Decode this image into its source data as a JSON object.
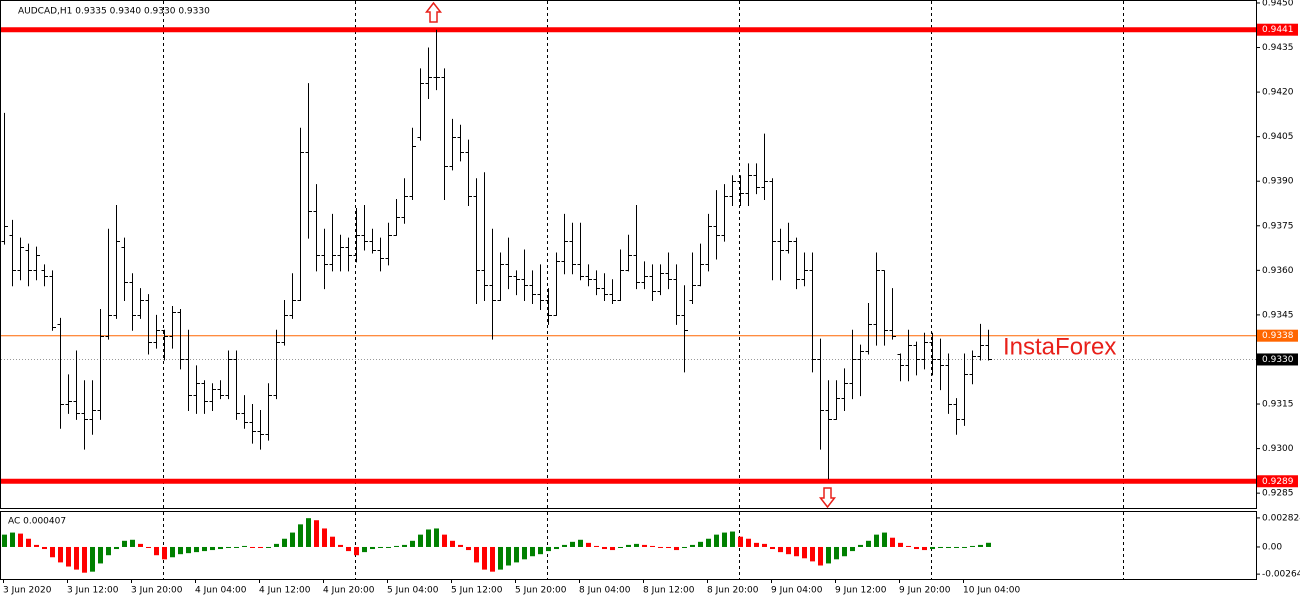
{
  "chart_data": [
    {
      "type": "ohlc",
      "title": "AUDCAD,H1  0.9335 0.9340 0.9330 0.9330",
      "watermark": "InstaForex",
      "color": "#000000",
      "ylim": [
        0.928,
        0.9451
      ],
      "yticks": [
        {
          "value": 0.945,
          "label": "0.9450"
        },
        {
          "value": 0.9435,
          "label": "0.9435"
        },
        {
          "value": 0.942,
          "label": "0.9420"
        },
        {
          "value": 0.9405,
          "label": "0.9405"
        },
        {
          "value": 0.939,
          "label": "0.9390"
        },
        {
          "value": 0.9375,
          "label": "0.9375"
        },
        {
          "value": 0.936,
          "label": "0.9360"
        },
        {
          "value": 0.9345,
          "label": "0.9345"
        },
        {
          "value": 0.9315,
          "label": "0.9315"
        },
        {
          "value": 0.93,
          "label": "0.9300"
        },
        {
          "value": 0.9285,
          "label": "0.9285"
        }
      ],
      "levels": [
        {
          "value": 0.9441,
          "label": "0.9441",
          "color": "#ff0000"
        },
        {
          "value": 0.9289,
          "label": "0.9289",
          "color": "#ff0000"
        },
        {
          "value": 0.9338,
          "label": "0.9338",
          "color": "#ff6600"
        }
      ],
      "bid": {
        "value": 0.933,
        "label": "0.9330",
        "color": "#000000"
      },
      "time_labels": [
        "3 Jun 2020",
        "3 Jun 12:00",
        "3 Jun 20:00",
        "4 Jun 04:00",
        "4 Jun 12:00",
        "4 Jun 20:00",
        "5 Jun 04:00",
        "5 Jun 12:00",
        "5 Jun 20:00",
        "8 Jun 04:00",
        "8 Jun 12:00",
        "8 Jun 20:00",
        "9 Jun 04:00",
        "9 Jun 12:00",
        "9 Jun 20:00",
        "10 Jun 04:00"
      ],
      "open": [
        0.937,
        0.9372,
        0.936,
        0.9367,
        0.936,
        0.936,
        0.9358,
        0.9342,
        0.9315,
        0.9316,
        0.9312,
        0.931,
        0.9313,
        0.9338,
        0.9345,
        0.9368,
        0.9356,
        0.9345,
        0.935,
        0.9336,
        0.934,
        0.9338,
        0.9346,
        0.933,
        0.9318,
        0.9322,
        0.9316,
        0.932,
        0.9318,
        0.933,
        0.9312,
        0.9309,
        0.9306,
        0.9305,
        0.9318,
        0.9336,
        0.9345,
        0.935,
        0.94,
        0.938,
        0.9365,
        0.9362,
        0.9365,
        0.9368,
        0.9365,
        0.9372,
        0.937,
        0.9367,
        0.9364,
        0.9372,
        0.9378,
        0.9385,
        0.9405,
        0.9423,
        0.9425,
        0.9425,
        0.9395,
        0.9405,
        0.94,
        0.9385,
        0.936,
        0.9355,
        0.935,
        0.9362,
        0.9358,
        0.9357,
        0.9355,
        0.9352,
        0.935,
        0.9345,
        0.9363,
        0.937,
        0.9362,
        0.9358,
        0.9357,
        0.9354,
        0.9352,
        0.935,
        0.936,
        0.9365,
        0.9356,
        0.9358,
        0.9353,
        0.9359,
        0.9357,
        0.9345,
        0.935,
        0.9355,
        0.9362,
        0.9375,
        0.9372,
        0.9385,
        0.939,
        0.9386,
        0.9392,
        0.9388,
        0.939,
        0.937,
        0.9367,
        0.937,
        0.9357,
        0.936,
        0.933,
        0.9313,
        0.931,
        0.9317,
        0.9322,
        0.933,
        0.9333,
        0.9342,
        0.936,
        0.934,
        0.9332,
        0.9328,
        0.9335,
        0.933,
        0.9336,
        0.933,
        0.9328,
        0.9315,
        0.931,
        0.9325,
        0.9331,
        0.9335
      ],
      "high": [
        0.9413,
        0.9377,
        0.9371,
        0.9369,
        0.9368,
        0.9362,
        0.936,
        0.9344,
        0.9325,
        0.9333,
        0.9323,
        0.9323,
        0.9347,
        0.9374,
        0.9382,
        0.9371,
        0.9359,
        0.9354,
        0.9352,
        0.9345,
        0.934,
        0.9348,
        0.9347,
        0.934,
        0.9328,
        0.9323,
        0.9322,
        0.9323,
        0.9333,
        0.9333,
        0.9318,
        0.9315,
        0.9313,
        0.9322,
        0.934,
        0.935,
        0.9359,
        0.9408,
        0.9423,
        0.9389,
        0.9374,
        0.9379,
        0.9372,
        0.9371,
        0.9381,
        0.9382,
        0.9374,
        0.9371,
        0.9376,
        0.9384,
        0.9391,
        0.9408,
        0.9428,
        0.9435,
        0.9441,
        0.9428,
        0.9411,
        0.9409,
        0.9404,
        0.9391,
        0.9393,
        0.9374,
        0.9366,
        0.9371,
        0.936,
        0.9367,
        0.936,
        0.9362,
        0.9354,
        0.9366,
        0.9379,
        0.9376,
        0.9376,
        0.9362,
        0.936,
        0.9359,
        0.9357,
        0.9367,
        0.9372,
        0.9382,
        0.9363,
        0.9362,
        0.9362,
        0.9366,
        0.9362,
        0.9355,
        0.9366,
        0.9369,
        0.9379,
        0.9387,
        0.9389,
        0.9392,
        0.9392,
        0.9396,
        0.9396,
        0.9406,
        0.9391,
        0.9374,
        0.9376,
        0.9371,
        0.9366,
        0.9366,
        0.9337,
        0.9323,
        0.9323,
        0.9327,
        0.934,
        0.9335,
        0.9349,
        0.9366,
        0.936,
        0.9354,
        0.9332,
        0.934,
        0.9336,
        0.9339,
        0.9339,
        0.9337,
        0.9332,
        0.9317,
        0.9332,
        0.9333,
        0.9342,
        0.934
      ],
      "low": [
        0.9369,
        0.9355,
        0.9357,
        0.9355,
        0.9357,
        0.9355,
        0.934,
        0.9307,
        0.9312,
        0.931,
        0.93,
        0.9305,
        0.931,
        0.9337,
        0.9344,
        0.935,
        0.934,
        0.9344,
        0.9332,
        0.9334,
        0.933,
        0.9334,
        0.9327,
        0.9313,
        0.9312,
        0.9312,
        0.9313,
        0.9317,
        0.9317,
        0.931,
        0.9307,
        0.9302,
        0.93,
        0.9303,
        0.9317,
        0.9335,
        0.9344,
        0.935,
        0.9371,
        0.936,
        0.9354,
        0.936,
        0.936,
        0.936,
        0.9363,
        0.9367,
        0.9366,
        0.936,
        0.9362,
        0.9372,
        0.9376,
        0.9384,
        0.9404,
        0.9418,
        0.9421,
        0.9384,
        0.9394,
        0.9397,
        0.9382,
        0.9349,
        0.935,
        0.9337,
        0.935,
        0.9354,
        0.9352,
        0.935,
        0.9349,
        0.9347,
        0.9342,
        0.9345,
        0.9359,
        0.9359,
        0.9357,
        0.9355,
        0.9352,
        0.935,
        0.9349,
        0.935,
        0.936,
        0.9354,
        0.9354,
        0.935,
        0.9352,
        0.9354,
        0.9342,
        0.9326,
        0.9349,
        0.9355,
        0.936,
        0.9364,
        0.937,
        0.9382,
        0.9382,
        0.9382,
        0.9386,
        0.9384,
        0.9357,
        0.9357,
        0.9366,
        0.9354,
        0.9355,
        0.9326,
        0.93,
        0.929,
        0.931,
        0.9313,
        0.9317,
        0.9318,
        0.9332,
        0.9335,
        0.9335,
        0.9337,
        0.9323,
        0.9323,
        0.9325,
        0.9327,
        0.9325,
        0.932,
        0.9312,
        0.9305,
        0.9308,
        0.9322,
        0.933,
        0.933
      ],
      "close": [
        0.9375,
        0.936,
        0.9368,
        0.936,
        0.9365,
        0.9358,
        0.9341,
        0.9315,
        0.9316,
        0.9312,
        0.931,
        0.9313,
        0.9338,
        0.9345,
        0.937,
        0.9356,
        0.9345,
        0.935,
        0.9336,
        0.934,
        0.9338,
        0.9346,
        0.933,
        0.9318,
        0.9322,
        0.9316,
        0.932,
        0.9318,
        0.933,
        0.9312,
        0.9309,
        0.9306,
        0.9305,
        0.9318,
        0.9336,
        0.9345,
        0.935,
        0.94,
        0.938,
        0.9365,
        0.9362,
        0.9365,
        0.9368,
        0.9365,
        0.9372,
        0.937,
        0.9367,
        0.9364,
        0.9372,
        0.9378,
        0.9385,
        0.9402,
        0.9423,
        0.9425,
        0.9425,
        0.9395,
        0.9405,
        0.94,
        0.9385,
        0.936,
        0.9355,
        0.935,
        0.9362,
        0.9358,
        0.9357,
        0.9355,
        0.9352,
        0.935,
        0.9345,
        0.9363,
        0.937,
        0.9362,
        0.9358,
        0.9357,
        0.9354,
        0.9352,
        0.935,
        0.936,
        0.9365,
        0.9356,
        0.9358,
        0.9353,
        0.9359,
        0.9357,
        0.9345,
        0.934,
        0.9355,
        0.9362,
        0.9375,
        0.9372,
        0.9385,
        0.939,
        0.9386,
        0.9392,
        0.9388,
        0.939,
        0.937,
        0.9367,
        0.937,
        0.9357,
        0.936,
        0.933,
        0.9313,
        0.931,
        0.9317,
        0.9322,
        0.933,
        0.9333,
        0.9342,
        0.936,
        0.934,
        0.9338,
        0.9328,
        0.9335,
        0.933,
        0.9336,
        0.933,
        0.9328,
        0.9315,
        0.931,
        0.9325,
        0.9331,
        0.9335,
        0.933
      ]
    },
    {
      "type": "histogram",
      "title": "AC 0.000407",
      "colors": {
        "up": "#008000",
        "down": "#ff0000"
      },
      "ylim": [
        -0.00321,
        0.0034
      ],
      "yticks": [
        0.002824,
        {
          "value": 0,
          "label": "0.00"
        },
        -0.00264
      ],
      "values": [
        0.0012,
        0.0014,
        0.0013,
        0.0008,
        0.0002,
        -0.0002,
        -0.001,
        -0.0015,
        -0.0019,
        -0.0022,
        -0.0025,
        -0.0024,
        -0.0016,
        -0.0008,
        -0.0002,
        0.0006,
        0.0007,
        0.0003,
        -0.0001,
        -0.0008,
        -0.0012,
        -0.001,
        -0.0007,
        -0.0006,
        -0.0005,
        -0.0004,
        -0.0003,
        -0.0002,
        -0.0001,
        0,
        0.0001,
        0,
        -0.0001,
        0,
        0.0003,
        0.0008,
        0.0014,
        0.0022,
        0.0028,
        0.0026,
        0.0018,
        0.001,
        0.0002,
        -0.0004,
        -0.0008,
        -0.0005,
        -0.0002,
        -0.0001,
        0,
        0.0001,
        0.0002,
        0.0006,
        0.0012,
        0.0017,
        0.0018,
        0.0012,
        0.0006,
        0.0002,
        -0.0003,
        -0.0015,
        -0.0022,
        -0.0024,
        -0.0022,
        -0.0018,
        -0.0015,
        -0.0012,
        -0.0009,
        -0.0007,
        -0.0004,
        -0.0002,
        0.0002,
        0.0005,
        0.0007,
        0.0004,
        0.0001,
        -0.0002,
        -0.0003,
        -0.0001,
        0.0002,
        0.0003,
        0.0002,
        0.0001,
        0,
        -0.0001,
        -0.0003,
        -0.0001,
        0.0002,
        0.0005,
        0.0008,
        0.0012,
        0.0014,
        0.0015,
        0.001,
        0.0008,
        0.0004,
        0.0003,
        -0.0002,
        -0.0005,
        -0.0007,
        -0.0009,
        -0.0011,
        -0.0014,
        -0.0018,
        -0.0016,
        -0.0012,
        -0.0009,
        -0.0004,
        0.0002,
        0.0006,
        0.0012,
        0.0014,
        0.0009,
        0.0004,
        0.0001,
        -0.0002,
        -0.0003,
        -0.0002,
        -0.0001,
        -0.0001,
        0,
        0,
        0.0001,
        0.0002,
        0.000407
      ]
    }
  ]
}
